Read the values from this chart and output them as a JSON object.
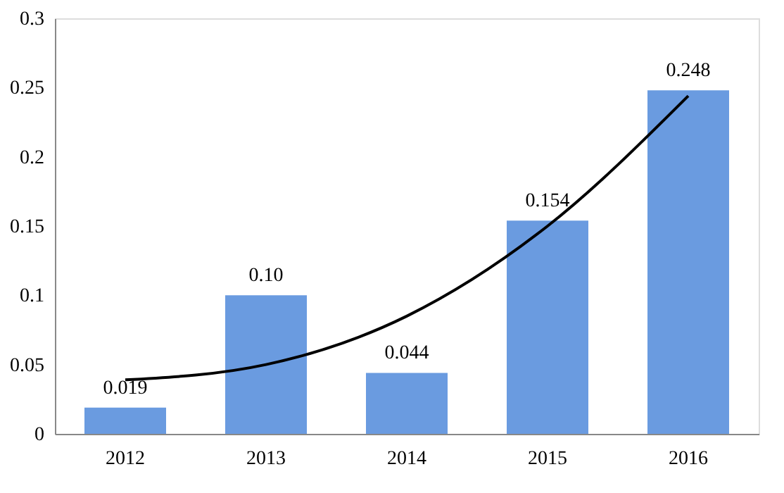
{
  "chart_data": {
    "type": "bar",
    "categories": [
      "2012",
      "2013",
      "2014",
      "2015",
      "2016"
    ],
    "series": [
      {
        "color": "#6a9be0",
        "values": [
          0.019,
          0.1,
          0.044,
          0.154,
          0.248
        ],
        "value_labels": [
          "0.019",
          "0.10",
          "0.044",
          "0.154",
          "0.248"
        ]
      },
      {
        "type": "line",
        "color": "#000000",
        "values": [
          0.039,
          0.05,
          0.085,
          0.15,
          0.244
        ],
        "line_style": "solid"
      }
    ],
    "ylim": [
      0,
      0.3
    ],
    "yticks": [
      0,
      0.05,
      0.1,
      0.15,
      0.2,
      0.25,
      0.3
    ],
    "grid": false
  }
}
